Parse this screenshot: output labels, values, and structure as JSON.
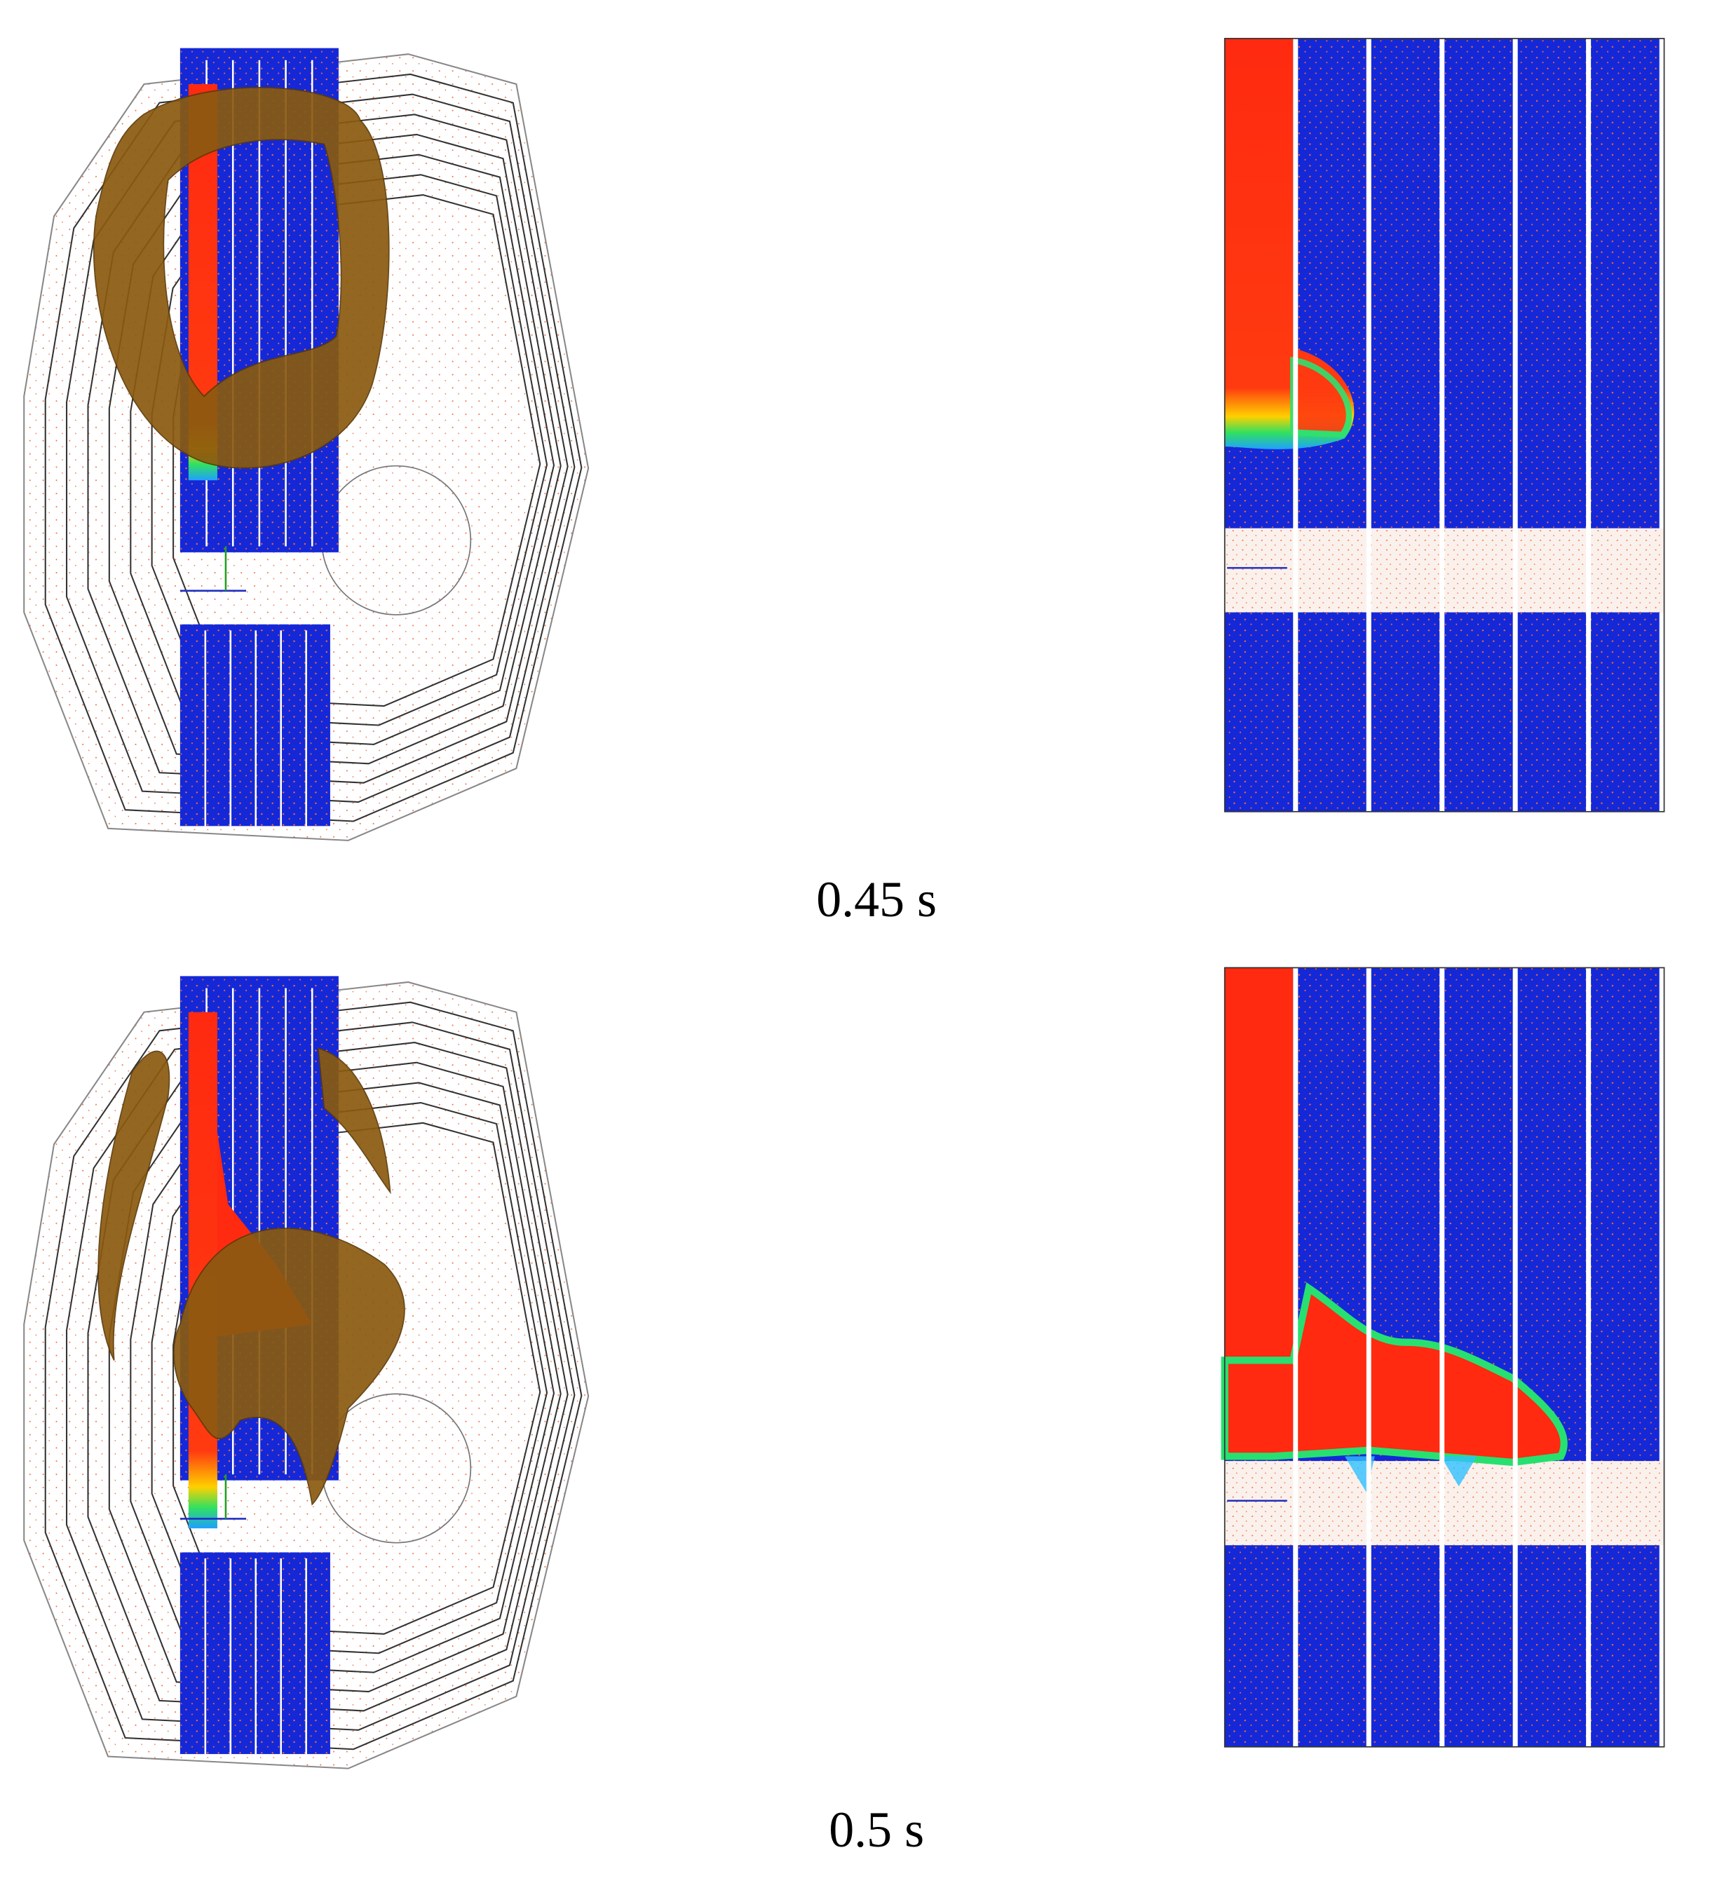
{
  "panels": [
    {
      "caption": "0.45 s"
    },
    {
      "caption": "0.5 s"
    }
  ]
}
